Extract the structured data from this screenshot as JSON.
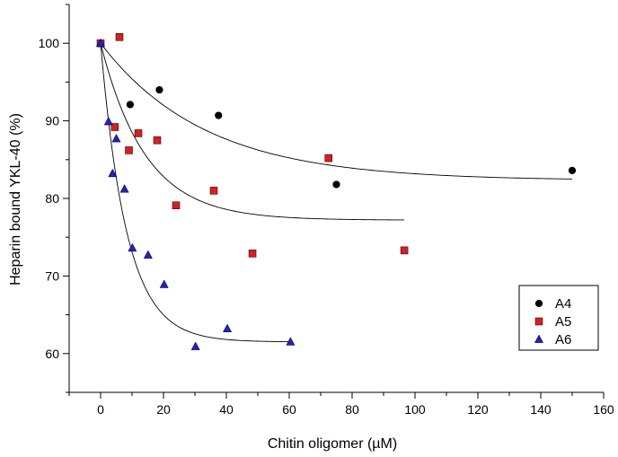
{
  "chart_data": {
    "type": "scatter",
    "title": "",
    "xlabel": "Chitin oligomer (µM)",
    "ylabel": "Heparin bound YKL-40 (%)",
    "xlim": [
      -10,
      160
    ],
    "ylim": [
      55,
      105
    ],
    "xticks": [
      0,
      20,
      40,
      60,
      80,
      100,
      120,
      140,
      160
    ],
    "yticks": [
      60,
      70,
      80,
      90,
      100
    ],
    "legend_position": "bottom-right",
    "series": [
      {
        "name": "A4",
        "marker": "circle",
        "color": "#000000",
        "points": [
          {
            "x": 0,
            "y": 100.0
          },
          {
            "x": 9.4,
            "y": 92.1
          },
          {
            "x": 18.7,
            "y": 94.0
          },
          {
            "x": 37.5,
            "y": 90.7
          },
          {
            "x": 75,
            "y": 81.8
          },
          {
            "x": 150,
            "y": 83.6
          }
        ],
        "fit": {
          "y0": 100,
          "plateau": 82.3,
          "k": 0.03,
          "xmax": 150
        }
      },
      {
        "name": "A5",
        "marker": "square",
        "color": "#e41a1c",
        "points": [
          {
            "x": 0,
            "y": 100.0
          },
          {
            "x": 6.0,
            "y": 100.8
          },
          {
            "x": 4.5,
            "y": 89.2
          },
          {
            "x": 9.0,
            "y": 86.2
          },
          {
            "x": 12.0,
            "y": 88.4
          },
          {
            "x": 18.0,
            "y": 87.5
          },
          {
            "x": 24.0,
            "y": 79.1
          },
          {
            "x": 36.0,
            "y": 81.0
          },
          {
            "x": 48.3,
            "y": 72.9
          },
          {
            "x": 72.5,
            "y": 85.2
          },
          {
            "x": 96.6,
            "y": 73.3
          }
        ],
        "fit": {
          "y0": 100,
          "plateau": 77.2,
          "k": 0.07,
          "xmax": 96.6
        }
      },
      {
        "name": "A6",
        "marker": "triangle",
        "color": "#1f1fd6",
        "points": [
          {
            "x": 0,
            "y": 100.0
          },
          {
            "x": 2.5,
            "y": 89.9
          },
          {
            "x": 3.8,
            "y": 83.2
          },
          {
            "x": 5.0,
            "y": 87.7
          },
          {
            "x": 7.6,
            "y": 81.2
          },
          {
            "x": 10.1,
            "y": 73.6
          },
          {
            "x": 15.1,
            "y": 72.7
          },
          {
            "x": 20.2,
            "y": 68.9
          },
          {
            "x": 30.2,
            "y": 60.9
          },
          {
            "x": 40.3,
            "y": 63.2
          },
          {
            "x": 60.4,
            "y": 61.5
          }
        ],
        "fit": {
          "y0": 100,
          "plateau": 61.5,
          "k": 0.12,
          "xmax": 60.4
        }
      }
    ]
  }
}
